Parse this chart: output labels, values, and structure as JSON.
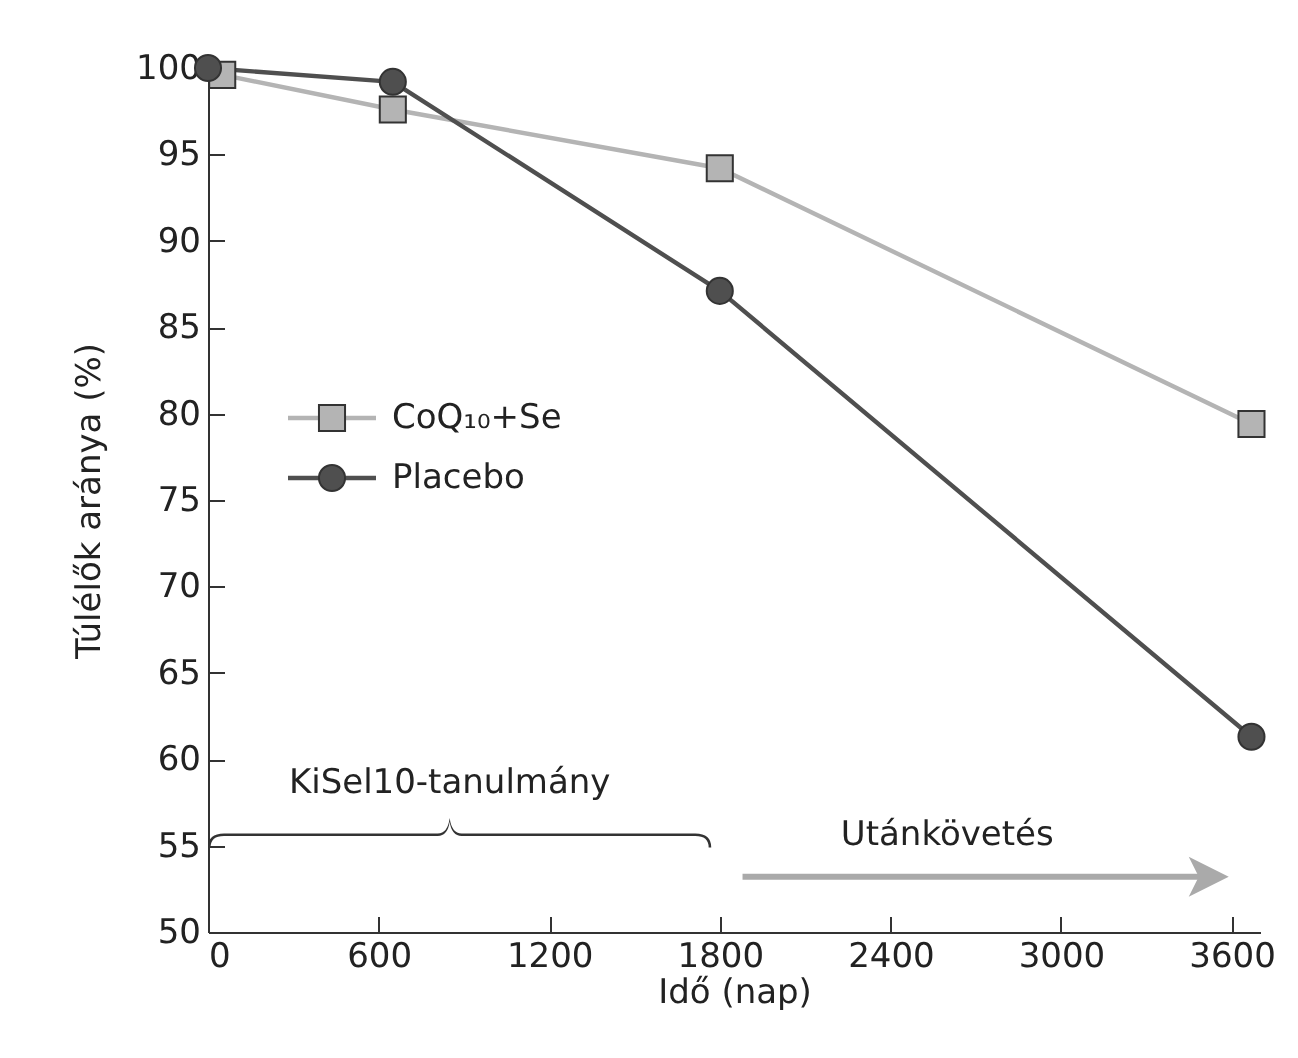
{
  "chart_data": {
    "type": "line",
    "xlabel": "Idő (nap)",
    "ylabel": "Túlélők aránya (%)",
    "xlim": [
      0,
      3700
    ],
    "xticks": [
      0,
      600,
      1200,
      1800,
      2400,
      3000,
      3600
    ],
    "ylim": [
      50,
      100
    ],
    "yticks": [
      50,
      55,
      60,
      65,
      70,
      75,
      80,
      85,
      90,
      95,
      100
    ],
    "series": [
      {
        "name": "CoQ₁₀+Se",
        "color": "#b4b4b4",
        "marker": "square",
        "x": [
          50,
          650,
          1800,
          3670
        ],
        "values": [
          99.6,
          97.6,
          94.2,
          79.4
        ]
      },
      {
        "name": "Placebo",
        "color": "#4f4f4f",
        "marker": "circle",
        "x": [
          0,
          650,
          1800,
          3670
        ],
        "values": [
          100,
          99.2,
          87.1,
          61.3
        ]
      }
    ],
    "annotations": [
      "KiSel10-tanulmány",
      "Utánkövetés"
    ],
    "legend": "left",
    "grid": false,
    "line_style": "solid"
  }
}
